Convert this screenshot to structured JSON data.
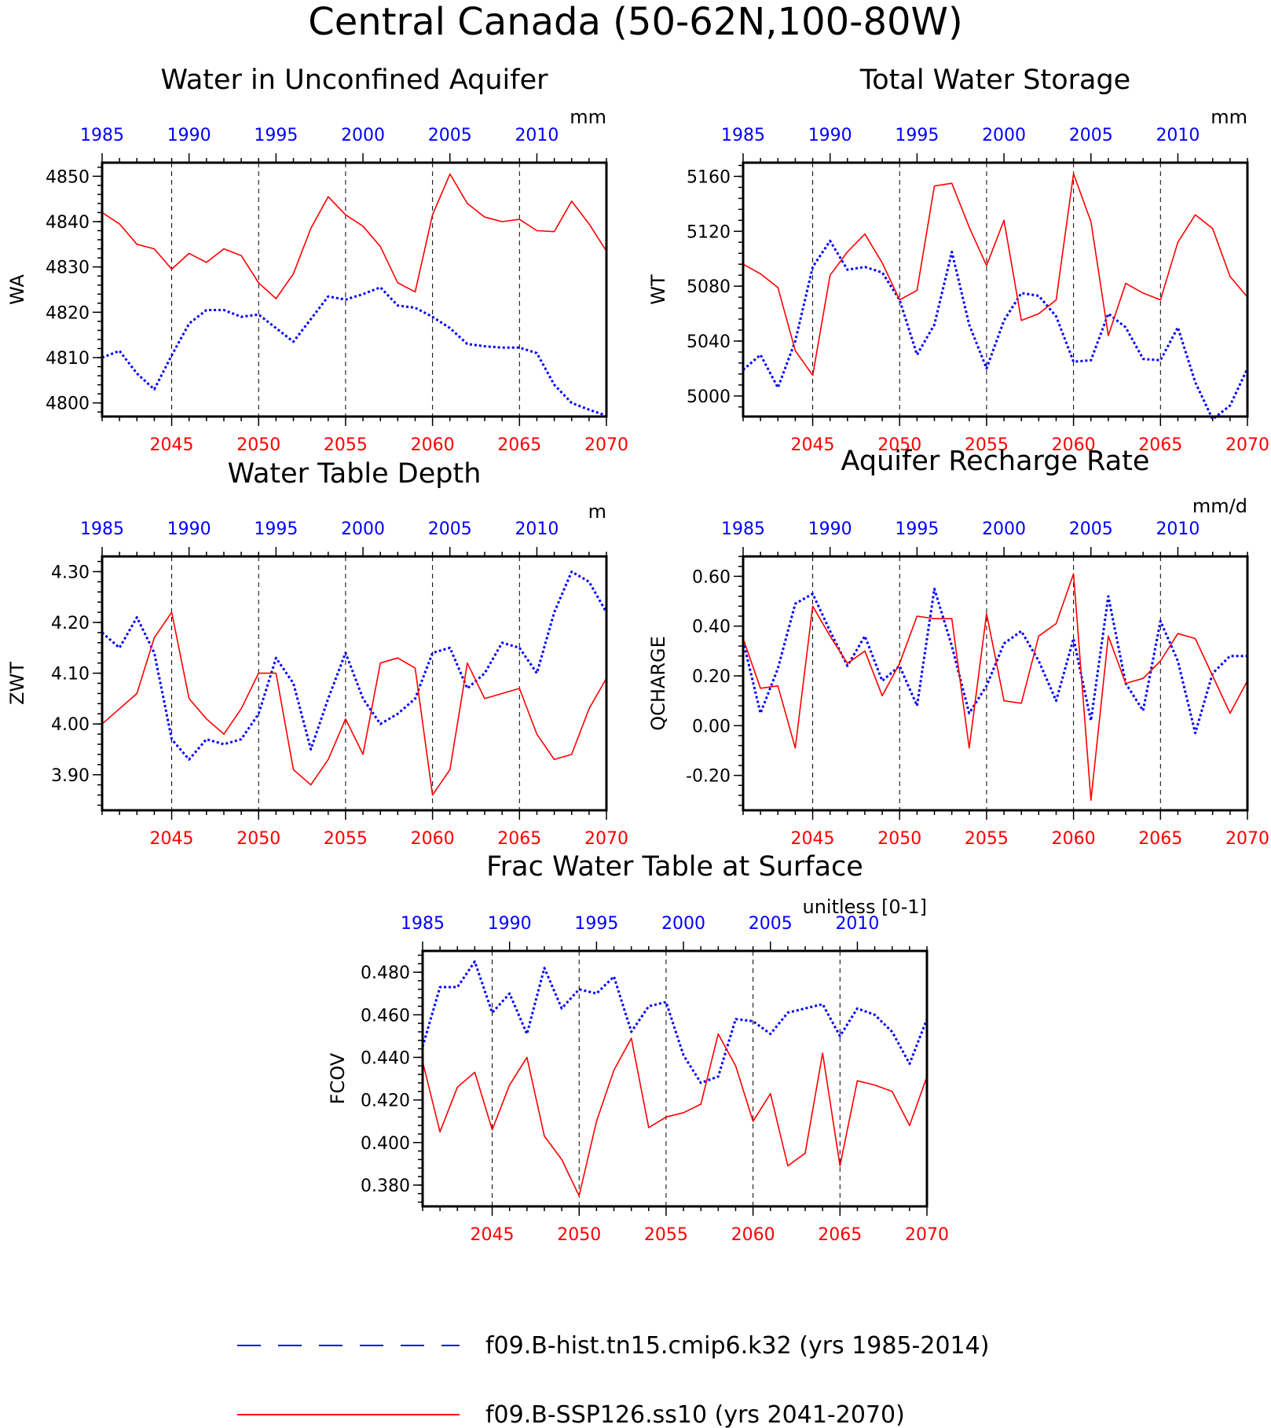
{
  "figure_title": "Central Canada (50-62N,100-80W)",
  "legend": [
    {
      "label": "f09.B-hist.tn15.cmip6.k32 (yrs 1985-2014)",
      "color": "#0000ff",
      "style": "dashed"
    },
    {
      "label": "f09.B-SSP126.ss10 (yrs 2041-2070)",
      "color": "#ff0000",
      "style": "solid"
    }
  ],
  "colors": {
    "hist": "#0000ff",
    "ssp": "#ff0000",
    "axis": "#000000"
  },
  "chart_data": [
    {
      "type": "line",
      "title": "Water in Unconfined Aquifer",
      "ylabel": "WA",
      "units": "mm",
      "ylim": [
        4797,
        4853
      ],
      "yticks": [
        4800,
        4810,
        4820,
        4830,
        4840,
        4850
      ],
      "ytick_labels": [
        "4800",
        "4810",
        "4820",
        "4830",
        "4840",
        "4850"
      ],
      "x_bottom": {
        "range": [
          2041,
          2070
        ],
        "ticks": [
          2045,
          2050,
          2055,
          2060,
          2065,
          2070
        ],
        "color": "#ff0000"
      },
      "x_top": {
        "range": [
          1985,
          2014
        ],
        "ticks": [
          1985,
          1990,
          1995,
          2000,
          2005,
          2010
        ],
        "color": "#0000ff"
      },
      "series": [
        {
          "name": "f09.B-hist.tn15.cmip6.k32 (yrs 1985-2014)",
          "x": [
            1985,
            1986,
            1987,
            1988,
            1989,
            1990,
            1991,
            1992,
            1993,
            1994,
            1995,
            1996,
            1997,
            1998,
            1999,
            2000,
            2001,
            2002,
            2003,
            2004,
            2005,
            2006,
            2007,
            2008,
            2009,
            2010,
            2011,
            2012,
            2013,
            2014
          ],
          "values": [
            4810,
            4811.5,
            4806.5,
            4803,
            4810.5,
            4817.5,
            4820.5,
            4820.5,
            4819,
            4819.5,
            4816.5,
            4813.5,
            4818.5,
            4823.5,
            4822.8,
            4824,
            4825.5,
            4821.5,
            4821,
            4819,
            4816.5,
            4813,
            4812.5,
            4812.2,
            4812.2,
            4811,
            4804,
            4800,
            4798.5,
            4797.2
          ]
        },
        {
          "name": "f09.B-SSP126.ss10 (yrs 2041-2070)",
          "x": [
            2041,
            2042,
            2043,
            2044,
            2045,
            2046,
            2047,
            2048,
            2049,
            2050,
            2051,
            2052,
            2053,
            2054,
            2055,
            2056,
            2057,
            2058,
            2059,
            2060,
            2061,
            2062,
            2063,
            2064,
            2065,
            2066,
            2067,
            2068,
            2069,
            2070
          ],
          "values": [
            4842,
            4839.5,
            4835,
            4834,
            4829.5,
            4833,
            4831,
            4834,
            4832.5,
            4826.5,
            4823,
            4828.5,
            4838.5,
            4845.5,
            4841.5,
            4839,
            4834.5,
            4826.5,
            4824.5,
            4841.5,
            4850.5,
            4844,
            4841,
            4840,
            4840.5,
            4838,
            4837.8,
            4844.5,
            4839.5,
            4833.5
          ]
        }
      ]
    },
    {
      "type": "line",
      "title": "Total Water Storage",
      "ylabel": "WT",
      "units": "mm",
      "ylim": [
        4985,
        5170
      ],
      "yticks": [
        5000,
        5040,
        5080,
        5120,
        5160
      ],
      "ytick_labels": [
        "5000",
        "5040",
        "5080",
        "5120",
        "5160"
      ],
      "x_bottom": {
        "range": [
          2041,
          2070
        ],
        "ticks": [
          2045,
          2050,
          2055,
          2060,
          2065,
          2070
        ],
        "color": "#ff0000"
      },
      "x_top": {
        "range": [
          1985,
          2014
        ],
        "ticks": [
          1985,
          1990,
          1995,
          2000,
          2005,
          2010
        ],
        "color": "#0000ff"
      },
      "series": [
        {
          "name": "f09.B-hist.tn15.cmip6.k32 (yrs 1985-2014)",
          "x": [
            1985,
            1986,
            1987,
            1988,
            1989,
            1990,
            1991,
            1992,
            1993,
            1994,
            1995,
            1996,
            1997,
            1998,
            1999,
            2000,
            2001,
            2002,
            2003,
            2004,
            2005,
            2006,
            2007,
            2008,
            2009,
            2010,
            2011,
            2012,
            2013,
            2014
          ],
          "values": [
            5019,
            5030,
            5006,
            5040,
            5094,
            5113,
            5092,
            5094,
            5090,
            5070,
            5030,
            5052,
            5105,
            5052,
            5020,
            5055,
            5075,
            5073,
            5058,
            5025,
            5026,
            5060,
            5050,
            5027,
            5026,
            5050,
            5010,
            4983,
            4993,
            5020
          ]
        },
        {
          "name": "f09.B-SSP126.ss10 (yrs 2041-2070)",
          "x": [
            2041,
            2042,
            2043,
            2044,
            2045,
            2046,
            2047,
            2048,
            2049,
            2050,
            2051,
            2052,
            2053,
            2054,
            2055,
            2056,
            2057,
            2058,
            2059,
            2060,
            2061,
            2062,
            2063,
            2064,
            2065,
            2066,
            2067,
            2068,
            2069,
            2070
          ],
          "values": [
            5096,
            5089,
            5079,
            5033,
            5015,
            5088,
            5105,
            5118,
            5097,
            5070,
            5077,
            5153,
            5155,
            5123,
            5095,
            5128,
            5055,
            5060,
            5070,
            5162,
            5127,
            5044,
            5082,
            5075,
            5070,
            5112,
            5132,
            5122,
            5087,
            5072
          ]
        }
      ]
    },
    {
      "type": "line",
      "title": "Water Table Depth",
      "ylabel": "ZWT",
      "units": "m",
      "ylim": [
        3.83,
        4.33
      ],
      "yticks": [
        3.9,
        4.0,
        4.1,
        4.2,
        4.3
      ],
      "ytick_labels": [
        "3.90",
        "4.00",
        "4.10",
        "4.20",
        "4.30"
      ],
      "x_bottom": {
        "range": [
          2041,
          2070
        ],
        "ticks": [
          2045,
          2050,
          2055,
          2060,
          2065,
          2070
        ],
        "color": "#ff0000"
      },
      "x_top": {
        "range": [
          1985,
          2014
        ],
        "ticks": [
          1985,
          1990,
          1995,
          2000,
          2005,
          2010
        ],
        "color": "#0000ff"
      },
      "series": [
        {
          "name": "f09.B-hist.tn15.cmip6.k32 (yrs 1985-2014)",
          "x": [
            1985,
            1986,
            1987,
            1988,
            1989,
            1990,
            1991,
            1992,
            1993,
            1994,
            1995,
            1996,
            1997,
            1998,
            1999,
            2000,
            2001,
            2002,
            2003,
            2004,
            2005,
            2006,
            2007,
            2008,
            2009,
            2010,
            2011,
            2012,
            2013,
            2014
          ],
          "values": [
            4.18,
            4.15,
            4.21,
            4.14,
            3.97,
            3.93,
            3.97,
            3.96,
            3.97,
            4.02,
            4.13,
            4.08,
            3.95,
            4.05,
            4.14,
            4.05,
            4.0,
            4.02,
            4.05,
            4.14,
            4.15,
            4.07,
            4.1,
            4.16,
            4.15,
            4.1,
            4.22,
            4.3,
            4.28,
            4.22
          ]
        },
        {
          "name": "f09.B-SSP126.ss10 (yrs 2041-2070)",
          "x": [
            2041,
            2042,
            2043,
            2044,
            2045,
            2046,
            2047,
            2048,
            2049,
            2050,
            2051,
            2052,
            2053,
            2054,
            2055,
            2056,
            2057,
            2058,
            2059,
            2060,
            2061,
            2062,
            2063,
            2064,
            2065,
            2066,
            2067,
            2068,
            2069,
            2070
          ],
          "values": [
            4.0,
            4.03,
            4.06,
            4.17,
            4.22,
            4.05,
            4.01,
            3.98,
            4.03,
            4.1,
            4.1,
            3.91,
            3.88,
            3.93,
            4.01,
            3.94,
            4.12,
            4.13,
            4.11,
            3.86,
            3.91,
            4.12,
            4.05,
            4.06,
            4.07,
            3.98,
            3.93,
            3.94,
            4.03,
            4.09
          ]
        }
      ]
    },
    {
      "type": "line",
      "title": "Aquifer Recharge Rate",
      "ylabel": "QCHARGE",
      "units": "mm/d",
      "ylim": [
        -0.34,
        0.68
      ],
      "yticks": [
        -0.2,
        0.0,
        0.2,
        0.4,
        0.6
      ],
      "ytick_labels": [
        "-0.20",
        "0.00",
        "0.20",
        "0.40",
        "0.60"
      ],
      "x_bottom": {
        "range": [
          2041,
          2070
        ],
        "ticks": [
          2045,
          2050,
          2055,
          2060,
          2065,
          2070
        ],
        "color": "#ff0000"
      },
      "x_top": {
        "range": [
          1985,
          2014
        ],
        "ticks": [
          1985,
          1990,
          1995,
          2000,
          2005,
          2010
        ],
        "color": "#0000ff"
      },
      "series": [
        {
          "name": "f09.B-hist.tn15.cmip6.k32 (yrs 1985-2014)",
          "x": [
            1985,
            1986,
            1987,
            1988,
            1989,
            1990,
            1991,
            1992,
            1993,
            1994,
            1995,
            1996,
            1997,
            1998,
            1999,
            2000,
            2001,
            2002,
            2003,
            2004,
            2005,
            2006,
            2007,
            2008,
            2009,
            2010,
            2011,
            2012,
            2013,
            2014
          ],
          "values": [
            0.34,
            0.05,
            0.23,
            0.49,
            0.53,
            0.38,
            0.24,
            0.36,
            0.18,
            0.24,
            0.08,
            0.55,
            0.32,
            0.05,
            0.16,
            0.33,
            0.38,
            0.26,
            0.1,
            0.35,
            0.02,
            0.52,
            0.17,
            0.06,
            0.42,
            0.26,
            -0.03,
            0.21,
            0.28,
            0.28
          ]
        },
        {
          "name": "f09.B-SSP126.ss10 (yrs 2041-2070)",
          "x": [
            2041,
            2042,
            2043,
            2044,
            2045,
            2046,
            2047,
            2048,
            2049,
            2050,
            2051,
            2052,
            2053,
            2054,
            2055,
            2056,
            2057,
            2058,
            2059,
            2060,
            2061,
            2062,
            2063,
            2064,
            2065,
            2066,
            2067,
            2068,
            2069,
            2070
          ],
          "values": [
            0.35,
            0.15,
            0.16,
            -0.09,
            0.48,
            0.36,
            0.25,
            0.3,
            0.12,
            0.25,
            0.44,
            0.43,
            0.43,
            -0.09,
            0.45,
            0.1,
            0.09,
            0.36,
            0.41,
            0.61,
            -0.3,
            0.36,
            0.17,
            0.19,
            0.26,
            0.37,
            0.35,
            0.2,
            0.05,
            0.18
          ]
        }
      ]
    },
    {
      "type": "line",
      "title": "Frac Water Table at Surface",
      "ylabel": "FCOV",
      "units": "unitless [0-1]",
      "ylim": [
        0.37,
        0.49
      ],
      "yticks": [
        0.38,
        0.4,
        0.42,
        0.44,
        0.46,
        0.48
      ],
      "ytick_labels": [
        "0.380",
        "0.400",
        "0.420",
        "0.440",
        "0.460",
        "0.480"
      ],
      "x_bottom": {
        "range": [
          2041,
          2070
        ],
        "ticks": [
          2045,
          2050,
          2055,
          2060,
          2065,
          2070
        ],
        "color": "#ff0000"
      },
      "x_top": {
        "range": [
          1985,
          2014
        ],
        "ticks": [
          1985,
          1990,
          1995,
          2000,
          2005,
          2010
        ],
        "color": "#0000ff"
      },
      "series": [
        {
          "name": "f09.B-hist.tn15.cmip6.k32 (yrs 1985-2014)",
          "x": [
            1985,
            1986,
            1987,
            1988,
            1989,
            1990,
            1991,
            1992,
            1993,
            1994,
            1995,
            1996,
            1997,
            1998,
            1999,
            2000,
            2001,
            2002,
            2003,
            2004,
            2005,
            2006,
            2007,
            2008,
            2009,
            2010,
            2011,
            2012,
            2013,
            2014
          ],
          "values": [
            0.445,
            0.473,
            0.473,
            0.485,
            0.461,
            0.47,
            0.451,
            0.482,
            0.463,
            0.472,
            0.47,
            0.478,
            0.452,
            0.464,
            0.466,
            0.441,
            0.428,
            0.431,
            0.458,
            0.457,
            0.451,
            0.461,
            0.463,
            0.465,
            0.45,
            0.463,
            0.46,
            0.452,
            0.437,
            0.458
          ]
        },
        {
          "name": "f09.B-SSP126.ss10 (yrs 2041-2070)",
          "x": [
            2041,
            2042,
            2043,
            2044,
            2045,
            2046,
            2047,
            2048,
            2049,
            2050,
            2051,
            2052,
            2053,
            2054,
            2055,
            2056,
            2057,
            2058,
            2059,
            2060,
            2061,
            2062,
            2063,
            2064,
            2065,
            2066,
            2067,
            2068,
            2069,
            2070
          ],
          "values": [
            0.438,
            0.405,
            0.426,
            0.433,
            0.406,
            0.427,
            0.44,
            0.403,
            0.392,
            0.375,
            0.41,
            0.434,
            0.449,
            0.407,
            0.412,
            0.414,
            0.418,
            0.451,
            0.436,
            0.41,
            0.423,
            0.389,
            0.395,
            0.442,
            0.389,
            0.429,
            0.427,
            0.424,
            0.408,
            0.431
          ]
        }
      ]
    }
  ]
}
